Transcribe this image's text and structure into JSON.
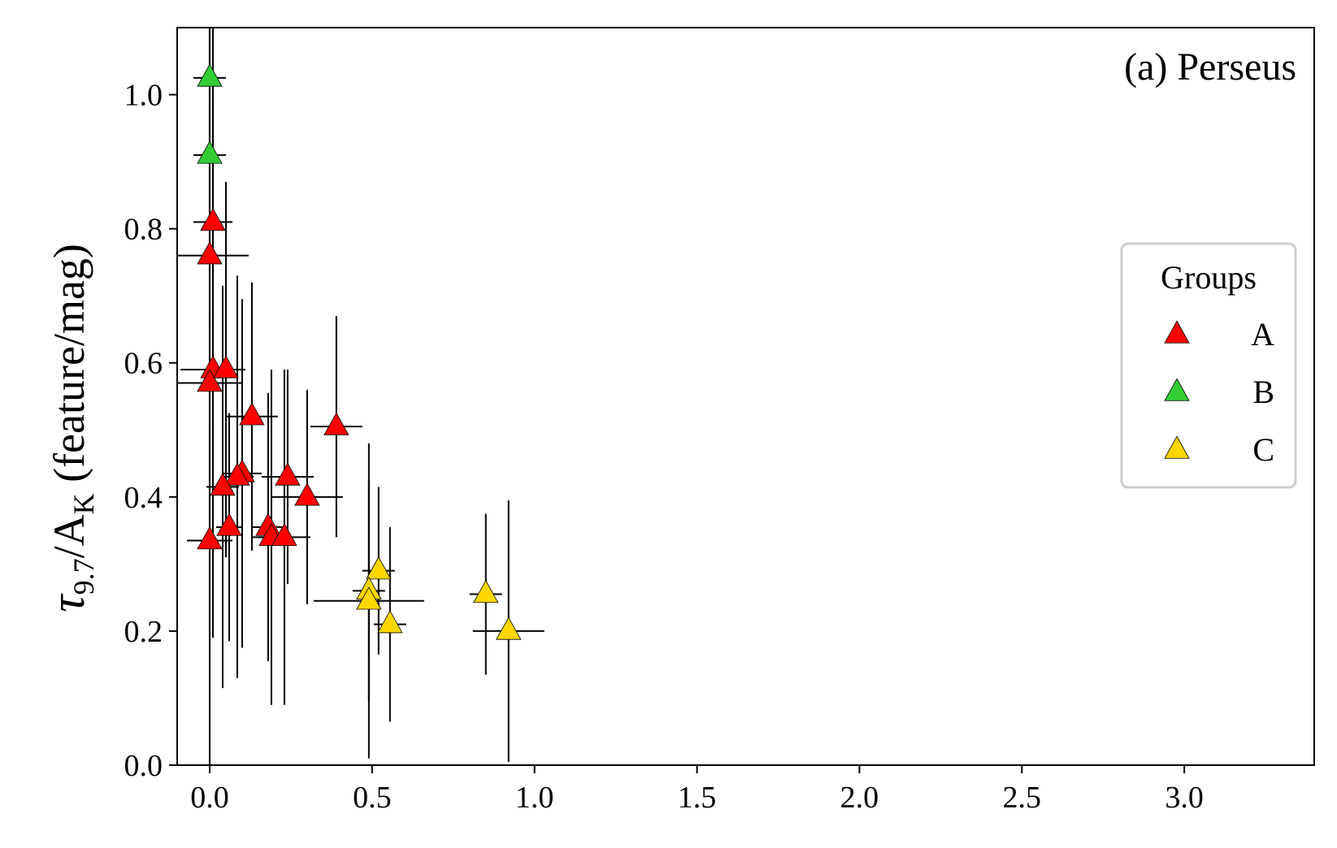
{
  "chart_data": {
    "type": "scatter",
    "title": "(a) Perseus",
    "xlabel": "",
    "ylabel": {
      "main": "τ",
      "main_sub": "9.7",
      "slash": "/A",
      "slash_sub": "K",
      "rest": " (feature/mag)"
    },
    "xlim": [
      -0.1,
      3.4
    ],
    "ylim": [
      0.0,
      1.1
    ],
    "x_ticks": [
      "0.0",
      "0.5",
      "1.0",
      "1.5",
      "2.0",
      "2.5",
      "3.0"
    ],
    "y_ticks": [
      "0.0",
      "0.2",
      "0.4",
      "0.6",
      "0.8",
      "1.0"
    ],
    "grid": false,
    "marker": "triangle",
    "legend": {
      "title": "Groups",
      "placement": "center-right"
    },
    "series": [
      {
        "name": "A",
        "color": "#ff0000",
        "points": [
          {
            "x": 0.01,
            "y": 0.81,
            "xerr": 0.06,
            "yerr": 0.3
          },
          {
            "x": 0.0,
            "y": 0.76,
            "xerr": 0.12,
            "yerr": 0.4
          },
          {
            "x": 0.01,
            "y": 0.59,
            "xerr": 0.1,
            "yerr": 0.4
          },
          {
            "x": 0.05,
            "y": 0.59,
            "xerr": 0.05,
            "yerr": 0.28
          },
          {
            "x": 0.0,
            "y": 0.57,
            "xerr": 0.1,
            "yerr": 0.58
          },
          {
            "x": 0.13,
            "y": 0.52,
            "xerr": 0.08,
            "yerr": 0.2
          },
          {
            "x": 0.39,
            "y": 0.505,
            "xerr": 0.08,
            "yerr": 0.165
          },
          {
            "x": 0.1,
            "y": 0.435,
            "xerr": 0.06,
            "yerr": 0.26
          },
          {
            "x": 0.085,
            "y": 0.43,
            "xerr": 0.05,
            "yerr": 0.3
          },
          {
            "x": 0.24,
            "y": 0.43,
            "xerr": 0.08,
            "yerr": 0.16
          },
          {
            "x": 0.04,
            "y": 0.415,
            "xerr": 0.05,
            "yerr": 0.3
          },
          {
            "x": 0.3,
            "y": 0.4,
            "xerr": 0.11,
            "yerr": 0.16
          },
          {
            "x": 0.06,
            "y": 0.355,
            "xerr": 0.04,
            "yerr": 0.17
          },
          {
            "x": 0.18,
            "y": 0.355,
            "xerr": 0.05,
            "yerr": 0.2
          },
          {
            "x": 0.19,
            "y": 0.34,
            "xerr": 0.06,
            "yerr": 0.25
          },
          {
            "x": 0.23,
            "y": 0.34,
            "xerr": 0.08,
            "yerr": 0.25
          },
          {
            "x": 0.0,
            "y": 0.335,
            "xerr": 0.07,
            "yerr": 0.335
          }
        ]
      },
      {
        "name": "B",
        "color": "#33cc33",
        "points": [
          {
            "x": 0.0,
            "y": 1.025,
            "xerr": 0.05,
            "yerr": 0.2
          },
          {
            "x": 0.0,
            "y": 0.91,
            "xerr": 0.05,
            "yerr": 0.25
          }
        ]
      },
      {
        "name": "C",
        "color": "#ffd700",
        "points": [
          {
            "x": 0.52,
            "y": 0.29,
            "xerr": 0.05,
            "yerr": 0.125
          },
          {
            "x": 0.49,
            "y": 0.26,
            "xerr": 0.05,
            "yerr": 0.165
          },
          {
            "x": 0.85,
            "y": 0.255,
            "xerr": 0.05,
            "yerr": 0.12
          },
          {
            "x": 0.49,
            "y": 0.245,
            "xerr": 0.17,
            "yerr": 0.235
          },
          {
            "x": 0.555,
            "y": 0.21,
            "xerr": 0.05,
            "yerr": 0.145
          },
          {
            "x": 0.92,
            "y": 0.2,
            "xerr": 0.11,
            "yerr": 0.195
          }
        ]
      }
    ]
  }
}
